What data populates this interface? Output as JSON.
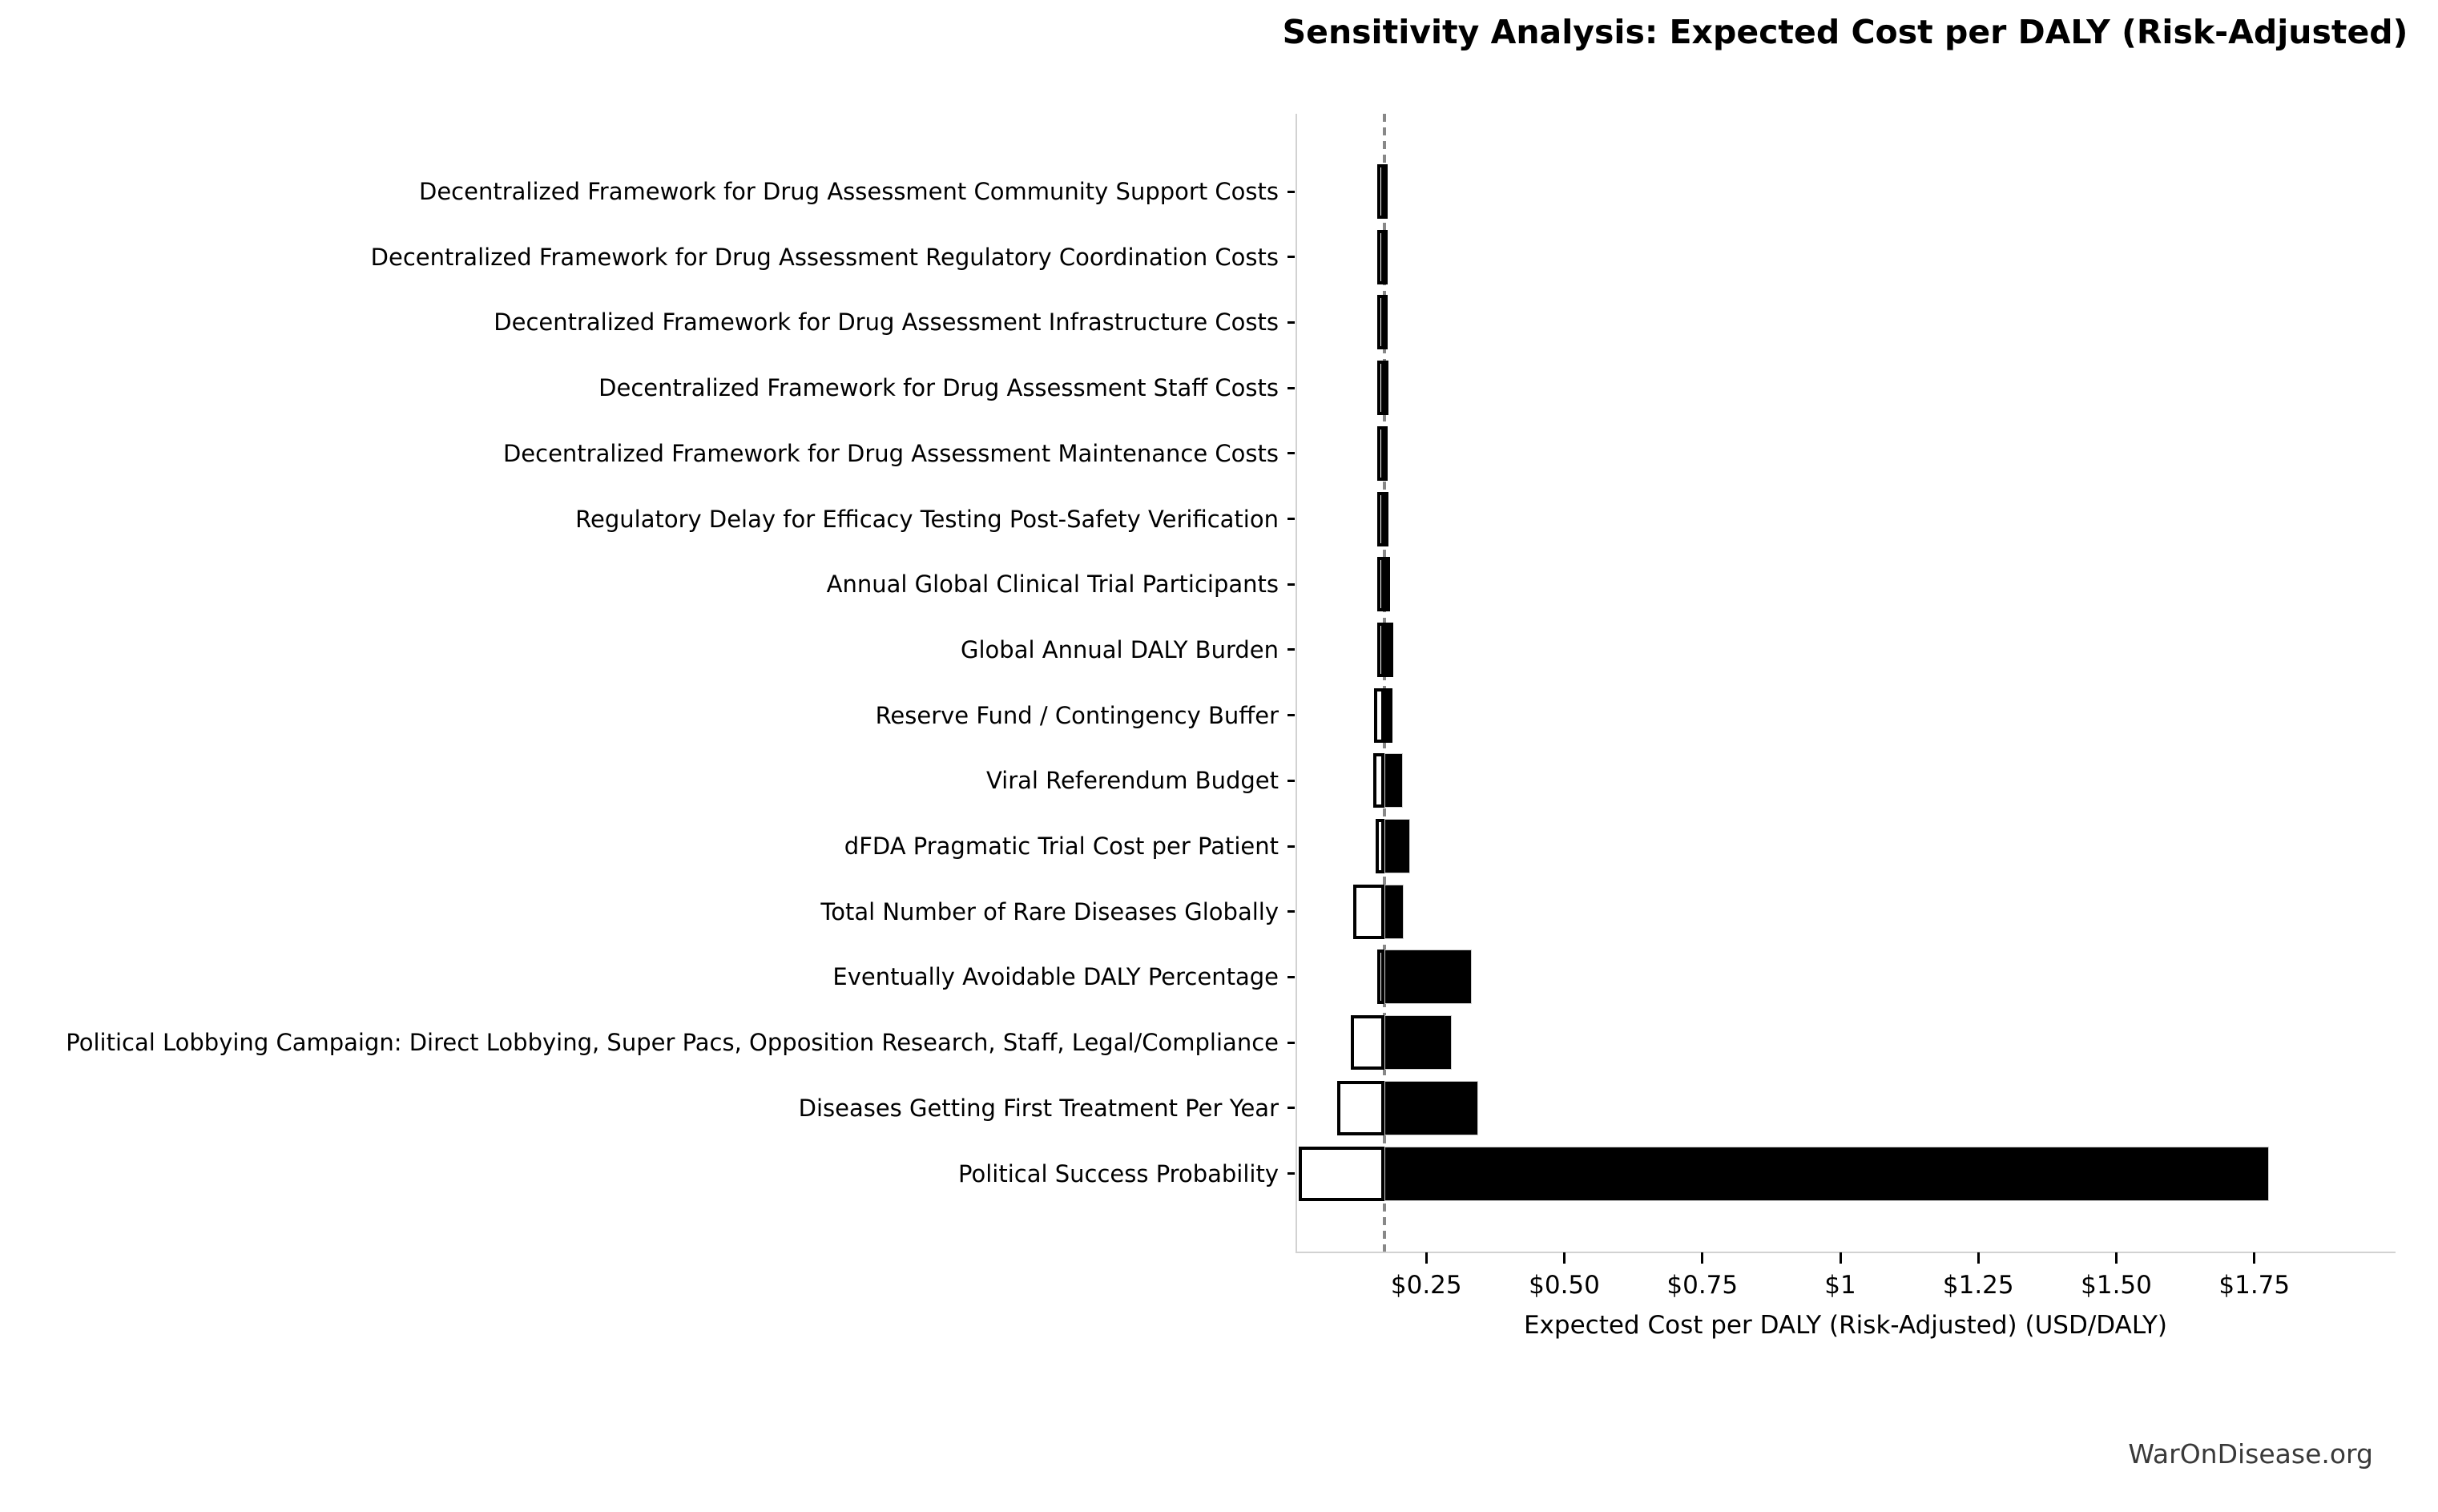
{
  "title": "Sensitivity Analysis: Expected Cost per DALY (Risk-Adjusted)",
  "footer": {
    "watermark": "WarOnDisease.org"
  },
  "chart_data": {
    "type": "bar",
    "subtype": "tornado-sensitivity",
    "orientation": "horizontal",
    "title": "Sensitivity Analysis: Expected Cost per DALY (Risk-Adjusted)",
    "xlabel": "Expected Cost per DALY (Risk-Adjusted) (USD/DALY)",
    "baseline_value": 0.174,
    "x_axis": {
      "min": 0,
      "max": 2.0,
      "tick_values": [
        0.25,
        0.5,
        0.75,
        1.0,
        1.25,
        1.5,
        1.75
      ],
      "tick_labels": [
        "$0.25",
        "$0.50",
        "$0.75",
        "$1",
        "$1.25",
        "$1.50",
        "$1.75"
      ]
    },
    "grid": false,
    "legend": "none",
    "bar_colors": {
      "low_fill": "#ffffff",
      "low_edge": "#000000",
      "high_fill": "#000000",
      "high_edge": "#cfcfcf",
      "baseline_line": "#888888"
    },
    "rows": [
      {
        "label": "Decentralized Framework for Drug Assessment Community Support Costs",
        "low": 0.17,
        "high": 0.18
      },
      {
        "label": "Decentralized Framework for Drug Assessment Regulatory Coordination Costs",
        "low": 0.17,
        "high": 0.18
      },
      {
        "label": "Decentralized Framework for Drug Assessment Infrastructure Costs",
        "low": 0.17,
        "high": 0.18
      },
      {
        "label": "Decentralized Framework for Drug Assessment Staff Costs",
        "low": 0.17,
        "high": 0.181
      },
      {
        "label": "Decentralized Framework for Drug Assessment Maintenance Costs",
        "low": 0.17,
        "high": 0.18
      },
      {
        "label": "Regulatory Delay for Efficacy Testing Post-Safety Verification",
        "low": 0.168,
        "high": 0.182
      },
      {
        "label": "Annual Global Clinical Trial Participants",
        "low": 0.166,
        "high": 0.184
      },
      {
        "label": "Global Annual DALY Burden",
        "low": 0.162,
        "high": 0.19
      },
      {
        "label": "Reserve Fund / Contingency Buffer",
        "low": 0.156,
        "high": 0.188
      },
      {
        "label": "Viral Referendum Budget",
        "low": 0.154,
        "high": 0.208
      },
      {
        "label": "dFDA Pragmatic Trial Cost per Patient",
        "low": 0.158,
        "high": 0.221
      },
      {
        "label": "Total Number of Rare Diseases Globally",
        "low": 0.118,
        "high": 0.209
      },
      {
        "label": "Eventually Avoidable DALY Percentage",
        "low": 0.163,
        "high": 0.332
      },
      {
        "label": "Political Lobbying Campaign: Direct Lobbying, Super Pacs, Opposition Research, Staff, Legal/Compliance",
        "low": 0.113,
        "high": 0.296
      },
      {
        "label": "Diseases Getting First Treatment Per Year",
        "low": 0.088,
        "high": 0.344
      },
      {
        "label": "Political Success Probability",
        "low": 0.019,
        "high": 1.777
      }
    ]
  }
}
